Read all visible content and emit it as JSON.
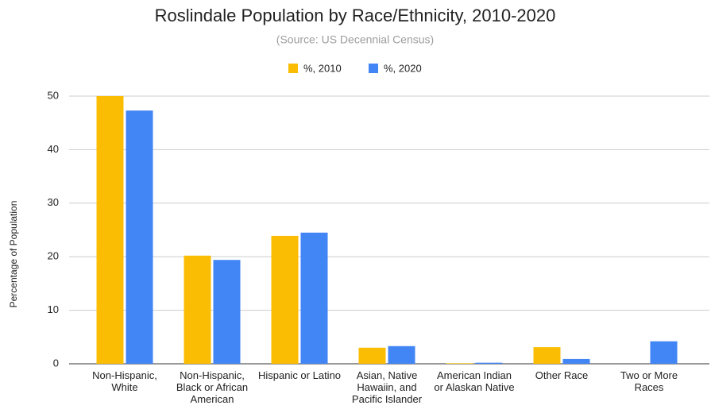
{
  "chart_data": {
    "type": "bar",
    "title": "Roslindale Population by Race/Ethnicity, 2010-2020",
    "subtitle": "(Source: US Decennial Census)",
    "y_axis_label": "Percentage of Population",
    "categories": [
      "Non-Hispanic, White",
      "Non-Hispanic, Black or African American",
      "Hispanic or Latino",
      "Asian, Native Hawaiin, and Pacific Islander",
      "American Indian or Alaskan Native",
      "Other Race",
      "Two or More Races"
    ],
    "series": [
      {
        "name": "%, 2010",
        "color": "#fbbc04",
        "values": [
          50.0,
          20.2,
          23.9,
          3.0,
          0.1,
          3.1,
          null
        ]
      },
      {
        "name": "%, 2020",
        "color": "#4285f4",
        "values": [
          47.3,
          19.4,
          24.5,
          3.3,
          0.2,
          0.9,
          4.2
        ]
      }
    ],
    "ylim": [
      0,
      50
    ],
    "yticks": [
      0,
      10,
      20,
      30,
      40,
      50
    ],
    "grid": true,
    "legend": "top"
  }
}
